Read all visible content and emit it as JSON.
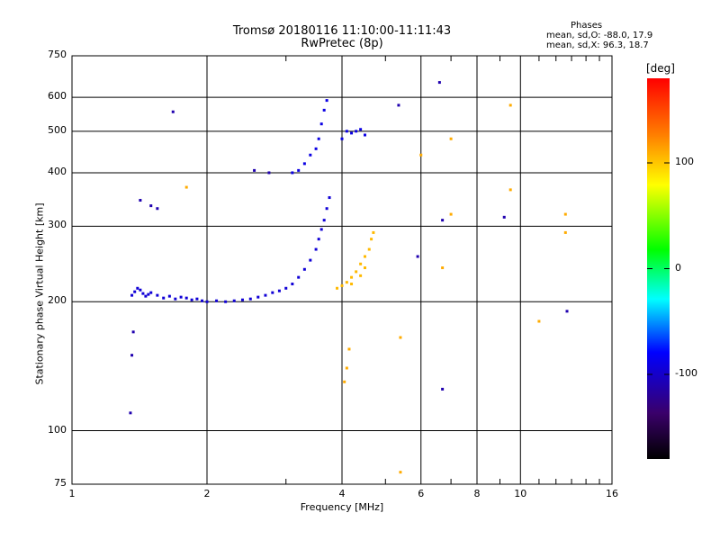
{
  "chart_data": {
    "type": "scatter",
    "title": "Tromsø 20180116 11:10:00-11:11:43",
    "subtitle": "RwPretec (8p)",
    "xlabel": "Frequency [MHz]",
    "ylabel": "Stationary phase Virtual Height [km]",
    "xscale": "log",
    "yscale": "log",
    "xlim": [
      1,
      16
    ],
    "ylim": [
      75,
      750
    ],
    "xticks": [
      "1",
      "2",
      "4",
      "6",
      "8",
      "10",
      "16"
    ],
    "yticks": [
      "75",
      "100",
      "200",
      "300",
      "400",
      "500",
      "600",
      "750"
    ],
    "grid": true,
    "stats": {
      "title": "Phases",
      "o_mode": "mean, sd,O: -88.0, 17.9",
      "x_mode": "mean, sd,X:  96.3, 18.7"
    },
    "colorbar": {
      "label": "[deg]",
      "ticks": [
        "100",
        "0",
        "-100"
      ],
      "range": [
        -180,
        180
      ]
    },
    "series": [
      {
        "mode": "O",
        "phase_deg": -95,
        "points": [
          [
            1.36,
            207
          ],
          [
            1.38,
            211
          ],
          [
            1.4,
            215
          ],
          [
            1.42,
            213
          ],
          [
            1.44,
            209
          ],
          [
            1.46,
            206
          ],
          [
            1.48,
            208
          ],
          [
            1.5,
            210
          ],
          [
            1.55,
            207
          ],
          [
            1.6,
            204
          ],
          [
            1.65,
            206
          ],
          [
            1.7,
            203
          ],
          [
            1.75,
            205
          ],
          [
            1.8,
            204
          ],
          [
            1.85,
            202
          ],
          [
            1.9,
            203
          ],
          [
            1.95,
            201
          ],
          [
            2.0,
            200
          ],
          [
            2.1,
            201
          ],
          [
            2.2,
            200
          ],
          [
            2.3,
            201
          ],
          [
            2.4,
            202
          ],
          [
            2.5,
            203
          ],
          [
            2.6,
            205
          ],
          [
            2.7,
            207
          ],
          [
            2.8,
            210
          ],
          [
            2.9,
            212
          ],
          [
            3.0,
            215
          ],
          [
            3.1,
            220
          ],
          [
            3.2,
            228
          ],
          [
            3.3,
            238
          ],
          [
            3.4,
            250
          ],
          [
            3.5,
            265
          ],
          [
            3.55,
            280
          ],
          [
            3.6,
            295
          ],
          [
            3.65,
            310
          ],
          [
            3.7,
            330
          ],
          [
            3.75,
            350
          ]
        ]
      },
      {
        "mode": "O-upper",
        "phase_deg": -90,
        "points": [
          [
            3.3,
            420
          ],
          [
            3.4,
            440
          ],
          [
            3.5,
            455
          ],
          [
            3.55,
            480
          ],
          [
            3.6,
            520
          ],
          [
            3.65,
            560
          ],
          [
            3.7,
            590
          ],
          [
            4.0,
            480
          ],
          [
            4.1,
            500
          ],
          [
            4.2,
            495
          ],
          [
            4.3,
            500
          ],
          [
            4.4,
            505
          ],
          [
            4.5,
            490
          ],
          [
            3.2,
            405
          ],
          [
            3.1,
            400
          ]
        ]
      },
      {
        "mode": "X",
        "phase_deg": 105,
        "points": [
          [
            3.9,
            215
          ],
          [
            4.0,
            218
          ],
          [
            4.1,
            222
          ],
          [
            4.2,
            228
          ],
          [
            4.3,
            235
          ],
          [
            4.4,
            245
          ],
          [
            4.5,
            255
          ],
          [
            4.6,
            265
          ],
          [
            4.65,
            280
          ],
          [
            4.7,
            290
          ],
          [
            4.4,
            230
          ],
          [
            4.2,
            220
          ],
          [
            4.5,
            240
          ]
        ]
      },
      {
        "mode": "scattered",
        "phase_deg": -110,
        "points": [
          [
            1.35,
            110
          ],
          [
            1.36,
            150
          ],
          [
            1.37,
            170
          ],
          [
            1.42,
            345
          ],
          [
            1.5,
            335
          ],
          [
            1.55,
            330
          ],
          [
            1.68,
            555
          ],
          [
            2.55,
            405
          ],
          [
            2.75,
            400
          ],
          [
            5.35,
            575
          ],
          [
            5.9,
            255
          ],
          [
            6.6,
            650
          ],
          [
            6.7,
            310
          ],
          [
            6.7,
            125
          ],
          [
            9.2,
            315
          ],
          [
            12.7,
            190
          ]
        ]
      },
      {
        "mode": "scattered-x",
        "phase_deg": 110,
        "points": [
          [
            1.8,
            370
          ],
          [
            4.05,
            130
          ],
          [
            4.1,
            140
          ],
          [
            4.15,
            155
          ],
          [
            5.4,
            165
          ],
          [
            6.0,
            440
          ],
          [
            6.7,
            240
          ],
          [
            7.0,
            480
          ],
          [
            7.0,
            320
          ],
          [
            9.5,
            575
          ],
          [
            9.5,
            365
          ],
          [
            11.0,
            180
          ],
          [
            12.6,
            290
          ],
          [
            12.6,
            320
          ],
          [
            5.4,
            80
          ]
        ]
      }
    ]
  }
}
